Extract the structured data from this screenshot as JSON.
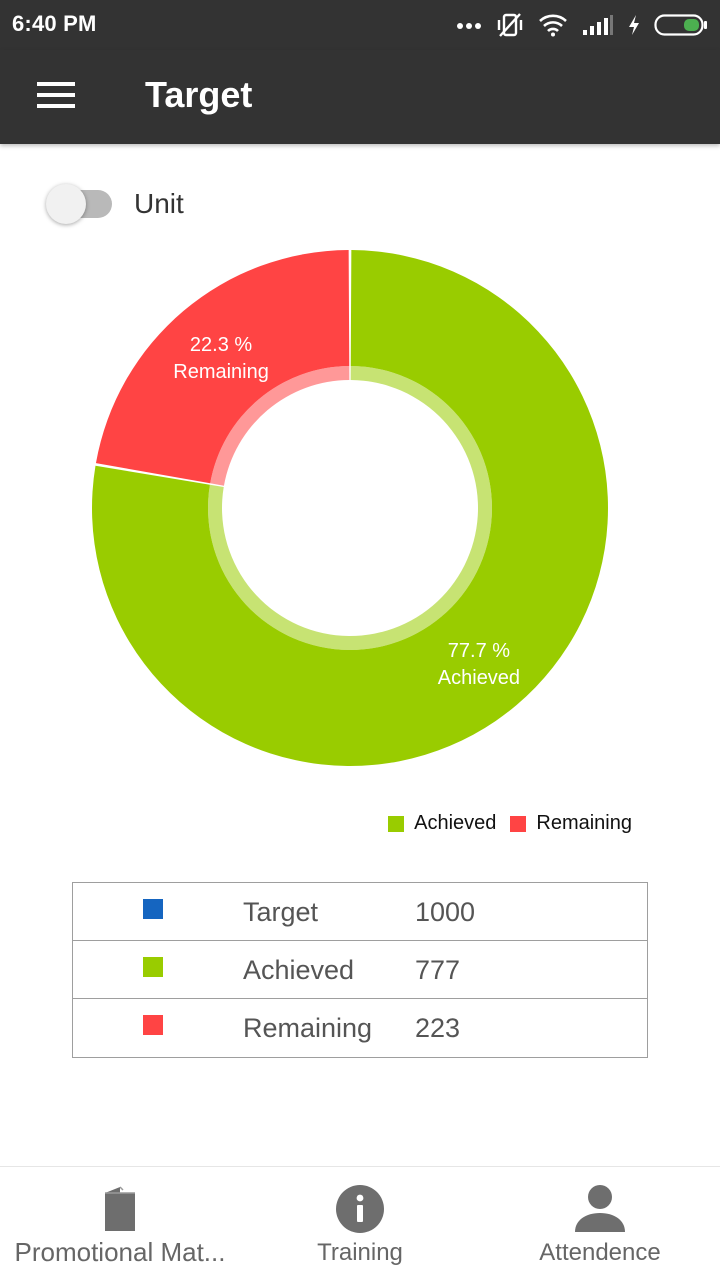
{
  "status_bar": {
    "time": "6:40 PM"
  },
  "app_bar": {
    "title": "Target",
    "menu_icon": "hamburger-menu-icon"
  },
  "toggle": {
    "label": "Unit",
    "on": false
  },
  "chart_data": {
    "type": "pie",
    "donut": true,
    "slices": [
      {
        "name": "Achieved",
        "value": 77.7,
        "label_value": "77.7 %",
        "label_name": "Achieved",
        "color": "#99CC00"
      },
      {
        "name": "Remaining",
        "value": 22.3,
        "label_value": "22.3 %",
        "label_name": "Remaining",
        "color": "#FF4444"
      }
    ],
    "legend": [
      "Achieved",
      "Remaining"
    ],
    "legend_placement": "bottom-right"
  },
  "summary": {
    "rows": [
      {
        "label": "Target",
        "value": "1000",
        "color": "#1565C0"
      },
      {
        "label": "Achieved",
        "value": "777",
        "color": "#99CC00"
      },
      {
        "label": "Remaining",
        "value": "223",
        "color": "#FF4444"
      }
    ]
  },
  "bottom_nav": {
    "items": [
      {
        "label": "Promotional Mat...",
        "icon": "book-icon"
      },
      {
        "label": "Training",
        "icon": "info-icon"
      },
      {
        "label": "Attendence",
        "icon": "person-icon"
      }
    ]
  }
}
